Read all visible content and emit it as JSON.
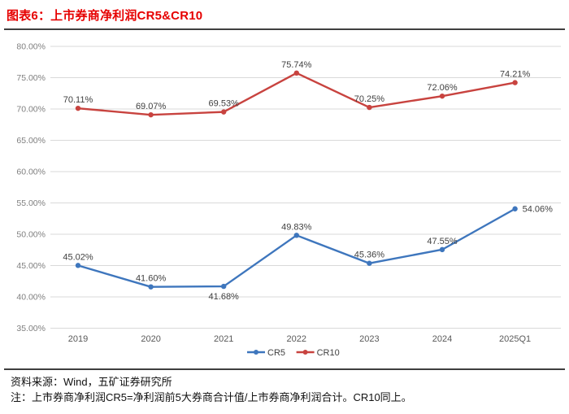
{
  "header": {
    "title": "图表6：上市券商净利润CR5&CR10",
    "title_color": "#e60000"
  },
  "chart_data": {
    "type": "line",
    "title": "上市券商净利润CR5&CR10",
    "categories": [
      "2019",
      "2020",
      "2021",
      "2022",
      "2023",
      "2024",
      "2025Q1"
    ],
    "series": [
      {
        "name": "CR5",
        "color": "#3e76bd",
        "values": [
          45.02,
          41.6,
          41.68,
          49.83,
          45.36,
          47.55,
          54.06
        ],
        "labels": [
          "45.02%",
          "41.60%",
          "41.68%",
          "49.83%",
          "45.36%",
          "47.55%",
          "54.06%"
        ],
        "label_placement": [
          "above",
          "above",
          "below",
          "above",
          "above",
          "above",
          "right"
        ]
      },
      {
        "name": "CR10",
        "color": "#c8433f",
        "values": [
          70.11,
          69.07,
          69.53,
          75.74,
          70.25,
          72.06,
          74.21
        ],
        "labels": [
          "70.11%",
          "69.07%",
          "69.53%",
          "75.74%",
          "70.25%",
          "72.06%",
          "74.21%"
        ],
        "label_placement": [
          "above",
          "above",
          "above",
          "above",
          "above",
          "above",
          "above"
        ]
      }
    ],
    "ylim": [
      35,
      80
    ],
    "yticks": [
      {
        "value": 80,
        "label": "80.00%"
      },
      {
        "value": 75,
        "label": "75.00%"
      },
      {
        "value": 70,
        "label": "70.00%"
      },
      {
        "value": 65,
        "label": "65.00%"
      },
      {
        "value": 60,
        "label": "60.00%"
      },
      {
        "value": 55,
        "label": "55.00%"
      },
      {
        "value": 50,
        "label": "50.00%"
      },
      {
        "value": 45,
        "label": "45.00%"
      },
      {
        "value": 40,
        "label": "40.00%"
      },
      {
        "value": 35,
        "label": "35.00%"
      }
    ],
    "grid": "horizontal",
    "gridline_color": "#d9d9d9",
    "axis_label_color": "#7f7f7f",
    "x_label_color": "#595959",
    "data_label_color": "#404040",
    "legend_position": "bottom-center",
    "legend": [
      "CR5",
      "CR10"
    ]
  },
  "footer": {
    "source": "资料来源：Wind，五矿证券研究所",
    "note": "注：上市券商净利润CR5=净利润前5大券商合计值/上市券商净利润合计。CR10同上。"
  }
}
